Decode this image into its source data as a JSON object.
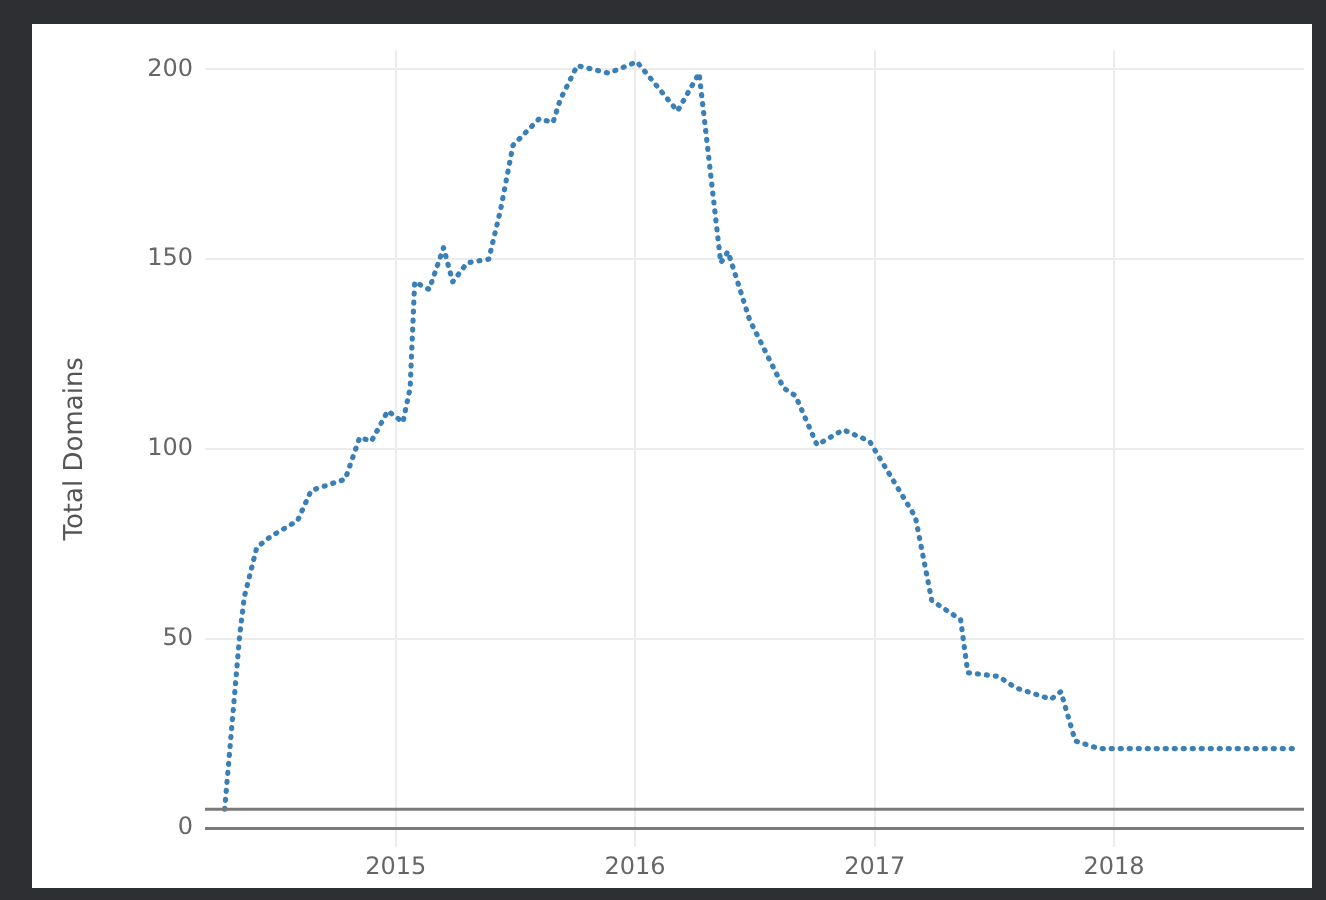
{
  "chart_data": {
    "type": "line",
    "ylabel": "Total Domains",
    "x": [
      "2014-04-15",
      "2014-05-08",
      "2014-05-15",
      "2014-06-03",
      "2014-06-25",
      "2014-08-04",
      "2014-08-25",
      "2014-10-16",
      "2014-11-07",
      "2014-11-25",
      "2014-12-20",
      "2015-01-12",
      "2015-01-23",
      "2015-01-30",
      "2015-02-21",
      "2015-03-15",
      "2015-03-29",
      "2015-04-20",
      "2015-05-23",
      "2015-06-10",
      "2015-06-29",
      "2015-08-08",
      "2015-08-29",
      "2015-09-09",
      "2015-10-05",
      "2015-11-22",
      "2016-01-04",
      "2016-03-06",
      "2016-04-08",
      "2016-05-11",
      "2016-05-22",
      "2016-06-24",
      "2016-08-15",
      "2016-09-02",
      "2016-10-05",
      "2016-11-14",
      "2016-12-24",
      "2017-03-04",
      "2017-03-29",
      "2017-05-12",
      "2017-05-23",
      "2017-07-09",
      "2017-08-04",
      "2017-09-27",
      "2017-10-12",
      "2017-11-03",
      "2017-12-09",
      "2018-10-12"
    ],
    "series": [
      {
        "color": "#3a7fb5",
        "values": [
          5,
          51,
          61,
          74,
          77,
          81,
          89,
          92,
          103,
          102,
          110,
          107,
          116,
          144,
          142,
          153,
          144,
          149,
          150,
          163,
          180,
          187,
          186,
          192,
          201,
          199,
          202,
          189,
          199,
          149,
          152,
          134,
          116,
          114,
          101,
          105,
          102,
          82,
          60,
          55,
          41,
          40,
          37,
          34,
          36,
          23,
          21,
          21
        ]
      }
    ],
    "xlim": [
      "2014-03-16",
      "2018-10-18"
    ],
    "xticks": [
      "2015",
      "2016",
      "2017",
      "2018"
    ],
    "ylim": [
      -5,
      205
    ],
    "yticks": [
      0,
      50,
      100,
      150,
      200
    ],
    "ref_lines": [
      {
        "axis": "y",
        "value": 5,
        "color": "#7a7a7a"
      }
    ],
    "grid": true,
    "legend": false,
    "marker": "none",
    "line_style": "dotted"
  }
}
